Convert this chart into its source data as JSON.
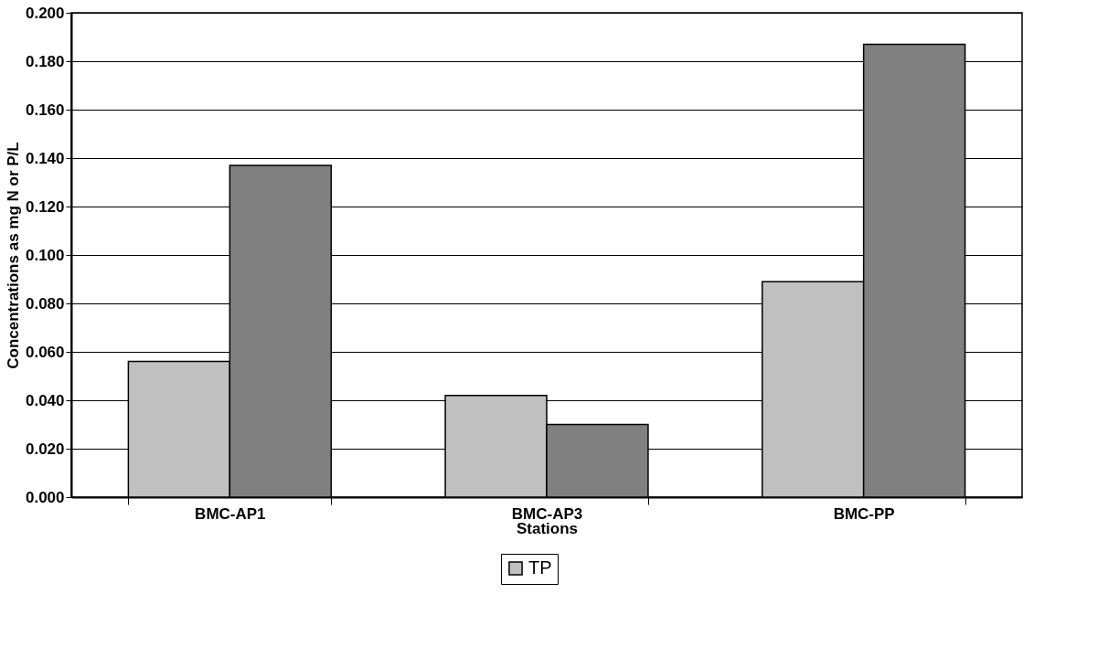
{
  "chart_data": {
    "type": "bar",
    "xlabel": "Stations",
    "ylabel": "Concentrations as mg N or P/L",
    "categories": [
      "BMC-AP1",
      "BMC-AP3",
      "BMC-PP"
    ],
    "series": [
      {
        "name": "TP",
        "color": "#c0c0c0",
        "values": [
          0.056,
          0.042,
          0.089
        ]
      },
      {
        "color": "#808080",
        "values": [
          0.137,
          0.03,
          0.187
        ]
      }
    ],
    "ylim": [
      0,
      0.2
    ],
    "yticks": [
      {
        "value": 0,
        "label": "0.000"
      },
      {
        "value": 0.02,
        "label": "0.020"
      },
      {
        "value": 0.04,
        "label": "0.040"
      },
      {
        "value": 0.06,
        "label": "0.060"
      },
      {
        "value": 0.08,
        "label": "0.080"
      },
      {
        "value": 0.1,
        "label": "0.100"
      },
      {
        "value": 0.12,
        "label": "0.120"
      },
      {
        "value": 0.14,
        "label": "0.140"
      },
      {
        "value": 0.16,
        "label": "0.160"
      },
      {
        "value": 0.18,
        "label": "0.180"
      },
      {
        "value": 0.2,
        "label": "0.200"
      }
    ],
    "grid": "y",
    "legend": "bottom"
  }
}
